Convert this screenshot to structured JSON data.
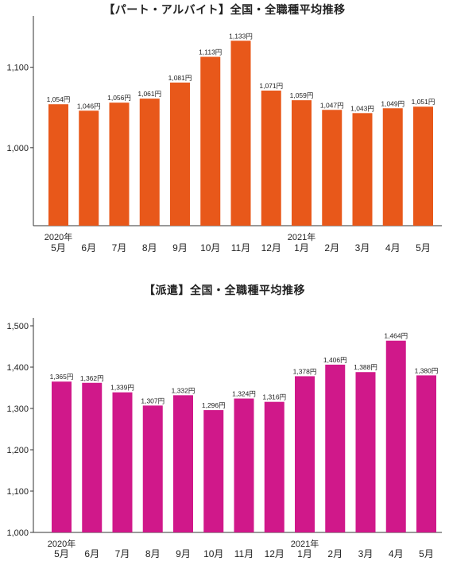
{
  "charts": [
    {
      "id": "part",
      "title": "【パート・アルバイト】全国・全職種平均推移",
      "color": "#E8581A",
      "type": "bar",
      "categories": [
        "5月",
        "6月",
        "7月",
        "8月",
        "9月",
        "10月",
        "11月",
        "12月",
        "1月",
        "2月",
        "3月",
        "4月",
        "5月"
      ],
      "year_labels": [
        {
          "index": 0,
          "label": "2020年"
        },
        {
          "index": 8,
          "label": "2021年"
        }
      ],
      "values": [
        1054,
        1046,
        1056,
        1061,
        1081,
        1113,
        1133,
        1071,
        1059,
        1047,
        1043,
        1049,
        1051
      ],
      "value_labels": [
        "1,054円",
        "1,046円",
        "1,056円",
        "1,061円",
        "1,081円",
        "1,113円",
        "1,133円",
        "1,071円",
        "1,059円",
        "1,047円",
        "1,043円",
        "1,049円",
        "1,051円"
      ],
      "yticks": [
        1000,
        1100
      ],
      "ytick_labels": [
        "1,000",
        "1,100"
      ],
      "ylim": [
        903,
        1154
      ]
    },
    {
      "id": "haken",
      "title": "【派遣】全国・全職種平均推移",
      "color": "#D0188A",
      "type": "bar",
      "categories": [
        "5月",
        "6月",
        "7月",
        "8月",
        "9月",
        "10月",
        "11月",
        "12月",
        "1月",
        "2月",
        "3月",
        "4月",
        "5月"
      ],
      "year_labels": [
        {
          "index": 0,
          "label": "2020年"
        },
        {
          "index": 8,
          "label": "2021年"
        }
      ],
      "values": [
        1365,
        1362,
        1339,
        1307,
        1332,
        1296,
        1324,
        1316,
        1378,
        1406,
        1388,
        1464,
        1380
      ],
      "value_labels": [
        "1,365円",
        "1,362円",
        "1,339円",
        "1,307円",
        "1,332円",
        "1,296円",
        "1,324円",
        "1,316円",
        "1,378円",
        "1,406円",
        "1,388円",
        "1,464円",
        "1,380円"
      ],
      "yticks": [
        1000,
        1100,
        1200,
        1300,
        1400,
        1500
      ],
      "ytick_labels": [
        "1,000",
        "1,100",
        "1,200",
        "1,300",
        "1,400",
        "1,500"
      ],
      "ylim": [
        1000,
        1500
      ]
    }
  ],
  "chart_data": [
    {
      "type": "bar",
      "title": "【パート・アルバイト】全国・全職種平均推移",
      "categories": [
        "2020年 5月",
        "6月",
        "7月",
        "8月",
        "9月",
        "10月",
        "11月",
        "12月",
        "2021年 1月",
        "2月",
        "3月",
        "4月",
        "5月"
      ],
      "values": [
        1054,
        1046,
        1056,
        1061,
        1081,
        1113,
        1133,
        1071,
        1059,
        1047,
        1043,
        1049,
        1051
      ],
      "xlabel": "",
      "ylabel": "",
      "grid": false
    },
    {
      "type": "bar",
      "title": "【派遣】全国・全職種平均推移",
      "categories": [
        "2020年 5月",
        "6月",
        "7月",
        "8月",
        "9月",
        "10月",
        "11月",
        "12月",
        "2021年 1月",
        "2月",
        "3月",
        "4月",
        "5月"
      ],
      "values": [
        1365,
        1362,
        1339,
        1307,
        1332,
        1296,
        1324,
        1316,
        1378,
        1406,
        1388,
        1464,
        1380
      ],
      "xlabel": "",
      "ylabel": "",
      "ylim": [
        1000,
        1500
      ],
      "grid": false
    }
  ]
}
